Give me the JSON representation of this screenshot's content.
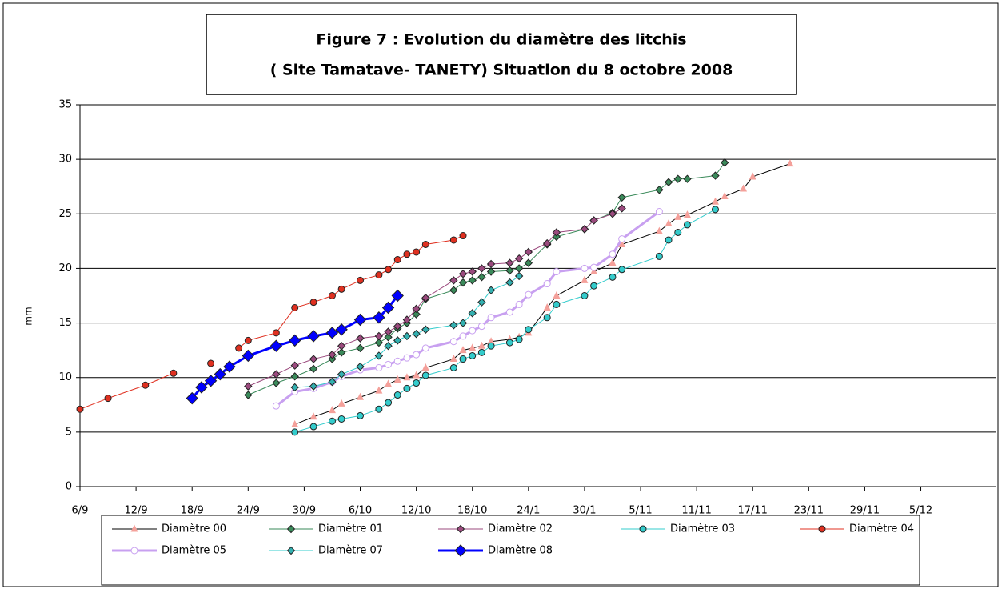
{
  "chart_data": {
    "type": "line",
    "title": [
      "Figure 7 : Evolution du diamètre des litchis",
      "( Site Tamatave- TANETY) Situation du 8 octobre  2008"
    ],
    "y_label": "mm",
    "xlim": [
      "6/9",
      "13/12"
    ],
    "xticks": [
      "6/9",
      "12/9",
      "18/9",
      "24/9",
      "30/9",
      "6/10",
      "12/10",
      "18/10",
      {
        "value": "24/10",
        "label": "24/1"
      },
      {
        "value": "30/10",
        "label": "30/1"
      },
      "5/11",
      "11/11",
      "17/11",
      "23/11",
      "29/11",
      "5/12"
    ],
    "ylim": [
      0,
      35
    ],
    "yticks": [
      0,
      5,
      10,
      15,
      20,
      25,
      30,
      35
    ],
    "grid": true,
    "series": [
      {
        "name": "Diamètre 00",
        "color": "#f4a09a",
        "line_color": "#000000",
        "marker": "triangle",
        "line_width": 1,
        "x": [
          "29/9",
          "1/10",
          "3/10",
          "4/10",
          "6/10",
          "8/10",
          "9/10",
          "10/10",
          "11/10",
          "12/10",
          "13/10",
          "16/10",
          "17/10",
          "18/10",
          "19/10",
          "20/10",
          "22/10",
          "23/10",
          "24/10",
          "26/10",
          "27/10",
          "30/10",
          "31/10",
          "2/11",
          "3/11",
          "7/11",
          "8/11",
          "9/11",
          "10/11",
          "13/11",
          "14/11",
          "16/11",
          "17/11",
          "21/11"
        ],
        "values": [
          5.7,
          6.4,
          7.0,
          7.6,
          8.2,
          8.8,
          9.4,
          9.8,
          10.0,
          10.2,
          10.9,
          11.7,
          12.5,
          12.7,
          12.9,
          13.3,
          13.5,
          13.7,
          14.1,
          16.4,
          17.5,
          18.9,
          19.7,
          20.5,
          22.2,
          23.4,
          24.1,
          24.7,
          24.9,
          26.1,
          26.6,
          27.3,
          28.4,
          29.6
        ]
      },
      {
        "name": "Diamètre 01",
        "color": "#3a8a5a",
        "line_color": "#3a8a5a",
        "marker": "diamond",
        "line_width": 1,
        "x": [
          "24/9",
          "27/9",
          "29/9",
          "1/10",
          "3/10",
          "4/10",
          "6/10",
          "8/10",
          "9/10",
          "10/10",
          "11/10",
          "12/10",
          "13/10",
          "16/10",
          "17/10",
          "18/10",
          "19/10",
          "20/10",
          "22/10",
          "23/10",
          "24/10",
          "26/10",
          "27/10",
          "30/10",
          "31/10",
          "2/11",
          "3/11",
          "7/11",
          "8/11",
          "9/11",
          "10/11",
          "13/11",
          "14/11"
        ],
        "values": [
          8.4,
          9.5,
          10.1,
          10.8,
          11.7,
          12.3,
          12.7,
          13.2,
          13.7,
          14.5,
          15.0,
          15.8,
          17.2,
          18.0,
          18.7,
          18.9,
          19.2,
          19.7,
          19.8,
          20.0,
          20.5,
          22.2,
          22.9,
          23.6,
          24.4,
          25.1,
          26.5,
          27.2,
          27.9,
          28.2,
          28.2,
          28.5,
          29.7
        ]
      },
      {
        "name": "Diamètre 02",
        "color": "#9b4a7e",
        "line_color": "#9b4a7e",
        "marker": "diamond",
        "line_width": 1,
        "x": [
          "24/9",
          "27/9",
          "29/9",
          "1/10",
          "3/10",
          "4/10",
          "6/10",
          "8/10",
          "9/10",
          "10/10",
          "11/10",
          "12/10",
          "13/10",
          "16/10",
          "17/10",
          "18/10",
          "19/10",
          "20/10",
          "22/10",
          "23/10",
          "24/10",
          "26/10",
          "27/10",
          "30/10",
          "31/10",
          "2/11",
          "3/11"
        ],
        "values": [
          9.2,
          10.3,
          11.1,
          11.7,
          12.1,
          12.9,
          13.6,
          13.8,
          14.2,
          14.7,
          15.3,
          16.3,
          17.3,
          18.9,
          19.5,
          19.7,
          20.0,
          20.4,
          20.5,
          20.9,
          21.5,
          22.3,
          23.3,
          23.6,
          24.4,
          25.0,
          25.5
        ]
      },
      {
        "name": "Diamètre 03",
        "color": "#33cccc",
        "line_color": "#33cccc",
        "marker": "circle",
        "line_width": 1,
        "x": [
          "29/9",
          "1/10",
          "3/10",
          "4/10",
          "6/10",
          "8/10",
          "9/10",
          "10/10",
          "11/10",
          "12/10",
          "13/10",
          "16/10",
          "17/10",
          "18/10",
          "19/10",
          "20/10",
          "22/10",
          "23/10",
          "24/10",
          "26/10",
          "27/10",
          "30/10",
          "31/10",
          "2/11",
          "3/11",
          "7/11",
          "8/11",
          "9/11",
          "10/11",
          "13/11"
        ],
        "values": [
          5.0,
          5.5,
          6.0,
          6.2,
          6.5,
          7.1,
          7.7,
          8.4,
          9.0,
          9.5,
          10.2,
          10.9,
          11.7,
          12.0,
          12.3,
          12.9,
          13.2,
          13.5,
          14.4,
          15.5,
          16.7,
          17.5,
          18.4,
          19.2,
          19.9,
          21.1,
          22.6,
          23.3,
          24.0,
          25.4
        ]
      },
      {
        "name": "Diamètre 04",
        "color": "#e03020",
        "line_color": "#e03020",
        "marker": "circle",
        "line_width": 1,
        "x": [
          "6/9",
          "9/9",
          "13/9",
          "16/9",
          "18/9",
          "20/9",
          "22/9",
          "23/9",
          "24/9",
          "27/9",
          "29/9",
          "1/10",
          "3/10",
          "4/10",
          "6/10",
          "8/10",
          "9/10",
          "10/10",
          "11/10",
          "12/10",
          "13/10",
          "16/10",
          "17/10"
        ],
        "values": [
          7.1,
          8.1,
          9.3,
          10.4,
          null,
          11.3,
          null,
          12.7,
          13.4,
          14.1,
          16.4,
          16.9,
          17.5,
          18.1,
          18.9,
          19.4,
          19.9,
          20.8,
          21.3,
          21.5,
          22.2,
          22.6,
          23.0
        ]
      },
      {
        "name": "Diamètre 05",
        "color": "#c8a0f0",
        "line_color": "#c8a0f0",
        "marker": "circle",
        "marker_fill": "#ffffff",
        "line_width": 3,
        "x": [
          "27/9",
          "29/9",
          "1/10",
          "3/10",
          "4/10",
          "6/10",
          "8/10",
          "9/10",
          "10/10",
          "11/10",
          "12/10",
          "13/10",
          "16/10",
          "17/10",
          "18/10",
          "19/10",
          "20/10",
          "22/10",
          "23/10",
          "24/10",
          "26/10",
          "27/10",
          "30/10",
          "31/10",
          "2/11",
          "3/11",
          "7/11"
        ],
        "values": [
          7.4,
          8.7,
          9.0,
          9.6,
          10.1,
          10.7,
          10.9,
          11.2,
          11.5,
          11.8,
          12.1,
          12.7,
          13.3,
          13.8,
          14.3,
          14.7,
          15.5,
          16.0,
          16.7,
          17.6,
          18.6,
          19.7,
          20.0,
          20.1,
          21.3,
          22.7,
          25.2
        ]
      },
      {
        "name": "Diamètre 07",
        "color": "#33b0b0",
        "line_color": "#33cccc",
        "marker": "diamond",
        "line_width": 1,
        "x": [
          "29/9",
          "1/10",
          "3/10",
          "4/10",
          "6/10",
          "8/10",
          "9/10",
          "10/10",
          "11/10",
          "12/10",
          "13/10",
          "16/10",
          "17/10",
          "18/10",
          "19/10",
          "20/10",
          "22/10",
          "23/10"
        ],
        "values": [
          9.1,
          9.2,
          9.6,
          10.3,
          11.0,
          12.0,
          12.9,
          13.4,
          13.8,
          14.0,
          14.4,
          14.8,
          15.0,
          15.9,
          16.9,
          18.0,
          18.7,
          19.3
        ]
      },
      {
        "name": "Diamètre 08",
        "color": "#0000ff",
        "line_color": "#0000ff",
        "marker": "diamond",
        "line_width": 3,
        "marker_size": 7,
        "x": [
          "18/9",
          "19/9",
          "20/9",
          "21/9",
          "22/9",
          "24/9",
          "27/9",
          "29/9",
          "1/10",
          "3/10",
          "4/10",
          "6/10",
          "8/10",
          "9/10",
          "10/10"
        ],
        "values": [
          8.1,
          9.1,
          9.7,
          10.3,
          11.0,
          12.0,
          12.9,
          13.4,
          13.8,
          14.1,
          14.4,
          15.3,
          15.5,
          16.4,
          17.5
        ]
      }
    ]
  }
}
